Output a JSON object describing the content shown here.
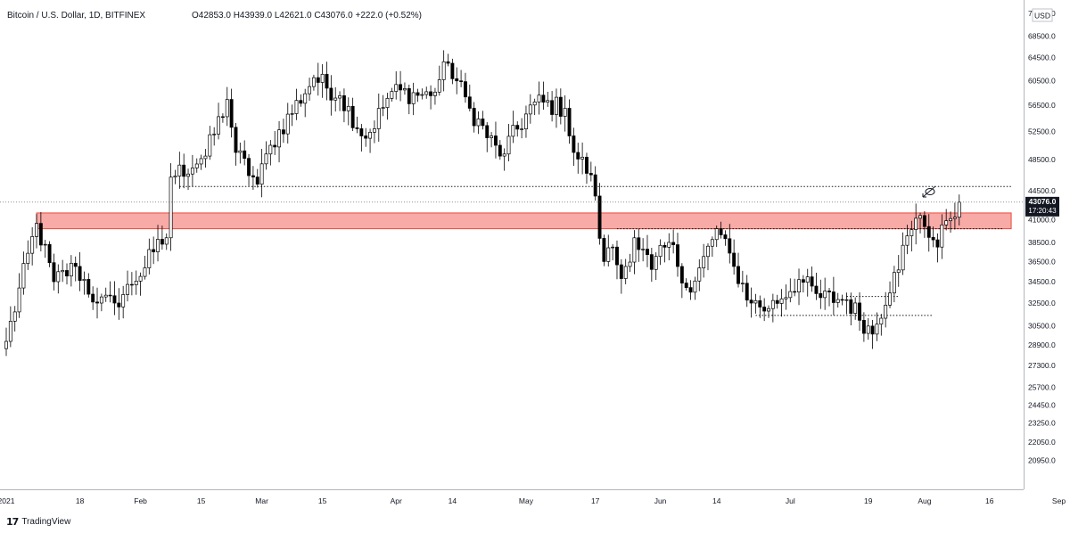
{
  "header": {
    "symbol": "Bitcoin / U.S. Dollar, 1D, BITFINEX",
    "ohlc_text": "O42853.0  H43939.0  L42621.0  C43076.0  +222.0 (+0.52%)"
  },
  "price_badge": {
    "price": "43076.0",
    "countdown": "17:20:43"
  },
  "currency": "USD",
  "footer": {
    "brand": "TradingView"
  },
  "colors": {
    "up": "#ffffff",
    "down": "#000000",
    "wick": "#000000",
    "zone_fill": "#f7a19c",
    "zone_stroke": "#e84b3c"
  },
  "chart_data": {
    "type": "candlestick",
    "title": "Bitcoin / U.S. Dollar, 1D, BITFINEX",
    "x_tick_labels": [
      "2021",
      "18",
      "Feb",
      "15",
      "Mar",
      "15",
      "Apr",
      "14",
      "May",
      "17",
      "Jun",
      "14",
      "Jul",
      "19",
      "Aug",
      "16",
      "Sep"
    ],
    "y_tick_labels": [
      "20950.0",
      "22050.0",
      "23250.0",
      "24450.0",
      "25700.0",
      "27300.0",
      "28900.0",
      "30500.0",
      "32500.0",
      "34500.0",
      "36500.0",
      "38500.0",
      "41000.0",
      "44500.0",
      "48500.0",
      "52500.0",
      "56500.0",
      "60500.0",
      "64500.0",
      "68500.0",
      "73000.0"
    ],
    "ylim": [
      20000,
      73000
    ],
    "y_scale": "log",
    "resistance_zone": {
      "low": 40000,
      "high": 41800,
      "from": "2021-01-08",
      "to": "2021-08-21"
    },
    "horizontal_levels": [
      {
        "price": 45000,
        "from": "2021-02-10",
        "to": "2021-08-21"
      },
      {
        "price": 40000,
        "from": "2021-05-22",
        "to": "2021-08-19"
      },
      {
        "price": 33100,
        "from": "2021-07-14",
        "to": "2021-07-26"
      },
      {
        "price": 31400,
        "from": "2021-06-23",
        "to": "2021-08-03"
      }
    ],
    "last_price": 43076.0,
    "anchors": [
      [
        "2021-01-01",
        29200
      ],
      [
        "2021-01-08",
        40600
      ],
      [
        "2021-01-12",
        34500
      ],
      [
        "2021-01-17",
        36000
      ],
      [
        "2021-01-22",
        32500
      ],
      [
        "2021-01-26",
        32500
      ],
      [
        "2021-01-30",
        34200
      ],
      [
        "2021-02-04",
        37500
      ],
      [
        "2021-02-07",
        39000
      ],
      [
        "2021-02-08",
        46200
      ],
      [
        "2021-02-16",
        49000
      ],
      [
        "2021-02-21",
        57400
      ],
      [
        "2021-02-23",
        49500
      ],
      [
        "2021-02-28",
        45300
      ],
      [
        "2021-03-03",
        50500
      ],
      [
        "2021-03-13",
        61000
      ],
      [
        "2021-03-19",
        58000
      ],
      [
        "2021-03-25",
        51500
      ],
      [
        "2021-03-31",
        58700
      ],
      [
        "2021-04-09",
        58000
      ],
      [
        "2021-04-13",
        63500
      ],
      [
        "2021-04-18",
        56000
      ],
      [
        "2021-04-25",
        49000
      ],
      [
        "2021-05-03",
        57000
      ],
      [
        "2021-05-10",
        56000
      ],
      [
        "2021-05-12",
        49500
      ],
      [
        "2021-05-16",
        46500
      ],
      [
        "2021-05-19",
        36500
      ],
      [
        "2021-05-21",
        38000
      ],
      [
        "2021-05-23",
        34800
      ],
      [
        "2021-05-26",
        39000
      ],
      [
        "2021-05-30",
        35700
      ],
      [
        "2021-06-03",
        38500
      ],
      [
        "2021-06-08",
        33500
      ],
      [
        "2021-06-14",
        40000
      ],
      [
        "2021-06-18",
        36000
      ],
      [
        "2021-06-22",
        32500
      ],
      [
        "2021-06-26",
        32000
      ],
      [
        "2021-07-03",
        34700
      ],
      [
        "2021-07-08",
        33000
      ],
      [
        "2021-07-14",
        32800
      ],
      [
        "2021-07-20",
        29800
      ],
      [
        "2021-07-25",
        35400
      ],
      [
        "2021-07-29",
        39900
      ],
      [
        "2021-07-31",
        41500
      ],
      [
        "2021-08-04",
        38000
      ],
      [
        "2021-08-06",
        40900
      ],
      [
        "2021-08-09",
        43076
      ]
    ]
  }
}
